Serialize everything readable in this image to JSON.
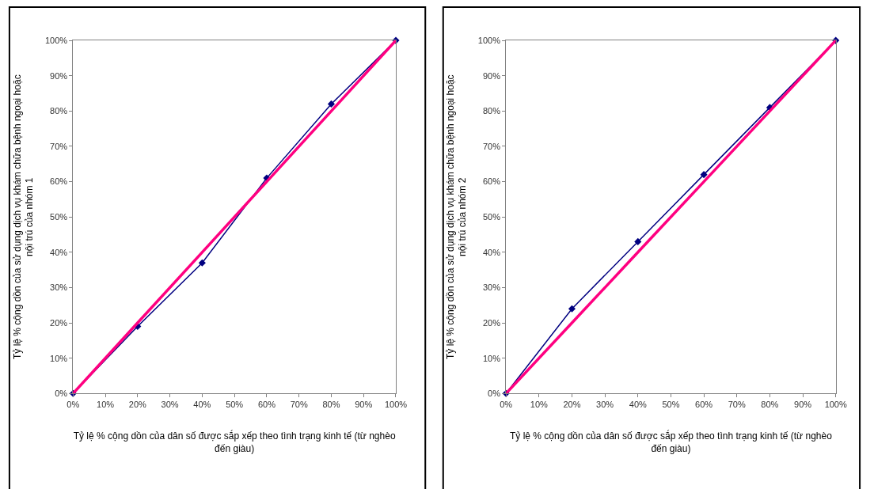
{
  "chart_data": [
    {
      "type": "line",
      "xlabel": "Tỷ lệ % cộng dồn của dân số được sắp xếp theo tình trạng kinh tế (từ nghèo đến giàu)",
      "ylabel": "Tỷ lệ % cộng dồn của sử dụng dịch vụ khám chữa bệnh ngoại hoặc nội trú của nhóm 1",
      "x": [
        0,
        20,
        40,
        60,
        80,
        100
      ],
      "series": [
        {
          "color": "#000080",
          "values": [
            0,
            19,
            37,
            61,
            82,
            100
          ],
          "marker": "diamond"
        },
        {
          "color": "#ff0080",
          "values": [
            0,
            20,
            40,
            60,
            80,
            100
          ],
          "marker": "none"
        }
      ],
      "xlim": [
        0,
        100
      ],
      "ylim": [
        0,
        100
      ],
      "xticks": [
        {
          "value": 0,
          "label": "0%"
        },
        {
          "value": 10,
          "label": "10%"
        },
        {
          "value": 20,
          "label": "20%"
        },
        {
          "value": 30,
          "label": "30%"
        },
        {
          "value": 40,
          "label": "40%"
        },
        {
          "value": 50,
          "label": "50%"
        },
        {
          "value": 60,
          "label": "60%"
        },
        {
          "value": 70,
          "label": "70%"
        },
        {
          "value": 80,
          "label": "80%"
        },
        {
          "value": 90,
          "label": "90%"
        },
        {
          "value": 100,
          "label": "100%"
        }
      ],
      "yticks": [
        {
          "value": 0,
          "label": "0%"
        },
        {
          "value": 10,
          "label": "10%"
        },
        {
          "value": 20,
          "label": "20%"
        },
        {
          "value": 30,
          "label": "30%"
        },
        {
          "value": 40,
          "label": "40%"
        },
        {
          "value": 50,
          "label": "50%"
        },
        {
          "value": 60,
          "label": "60%"
        },
        {
          "value": 70,
          "label": "70%"
        },
        {
          "value": 80,
          "label": "80%"
        },
        {
          "value": 90,
          "label": "90%"
        },
        {
          "value": 100,
          "label": "100%"
        }
      ],
      "grid": false
    },
    {
      "type": "line",
      "xlabel": "Tỷ lệ % cộng dồn của dân số được sắp xếp theo tình trạng kinh tế (từ nghèo đến giàu)",
      "ylabel": "Tỷ lệ % cộng dồn của sử dụng dịch vụ khám chữa bệnh ngoại hoặc nội trú của nhóm 2",
      "x": [
        0,
        20,
        40,
        60,
        80,
        100
      ],
      "series": [
        {
          "color": "#000080",
          "values": [
            0,
            24,
            43,
            62,
            81,
            100
          ],
          "marker": "diamond"
        },
        {
          "color": "#ff0080",
          "values": [
            0,
            20,
            40,
            60,
            80,
            100
          ],
          "marker": "none"
        }
      ],
      "xlim": [
        0,
        100
      ],
      "ylim": [
        0,
        100
      ],
      "xticks": [
        {
          "value": 0,
          "label": "0%"
        },
        {
          "value": 10,
          "label": "10%"
        },
        {
          "value": 20,
          "label": "20%"
        },
        {
          "value": 30,
          "label": "30%"
        },
        {
          "value": 40,
          "label": "40%"
        },
        {
          "value": 50,
          "label": "50%"
        },
        {
          "value": 60,
          "label": "60%"
        },
        {
          "value": 70,
          "label": "70%"
        },
        {
          "value": 80,
          "label": "80%"
        },
        {
          "value": 90,
          "label": "90%"
        },
        {
          "value": 100,
          "label": "100%"
        }
      ],
      "yticks": [
        {
          "value": 0,
          "label": "0%"
        },
        {
          "value": 10,
          "label": "10%"
        },
        {
          "value": 20,
          "label": "20%"
        },
        {
          "value": 30,
          "label": "30%"
        },
        {
          "value": 40,
          "label": "40%"
        },
        {
          "value": 50,
          "label": "50%"
        },
        {
          "value": 60,
          "label": "60%"
        },
        {
          "value": 70,
          "label": "70%"
        },
        {
          "value": 80,
          "label": "80%"
        },
        {
          "value": 90,
          "label": "90%"
        },
        {
          "value": 100,
          "label": "100%"
        }
      ],
      "grid": false
    }
  ]
}
